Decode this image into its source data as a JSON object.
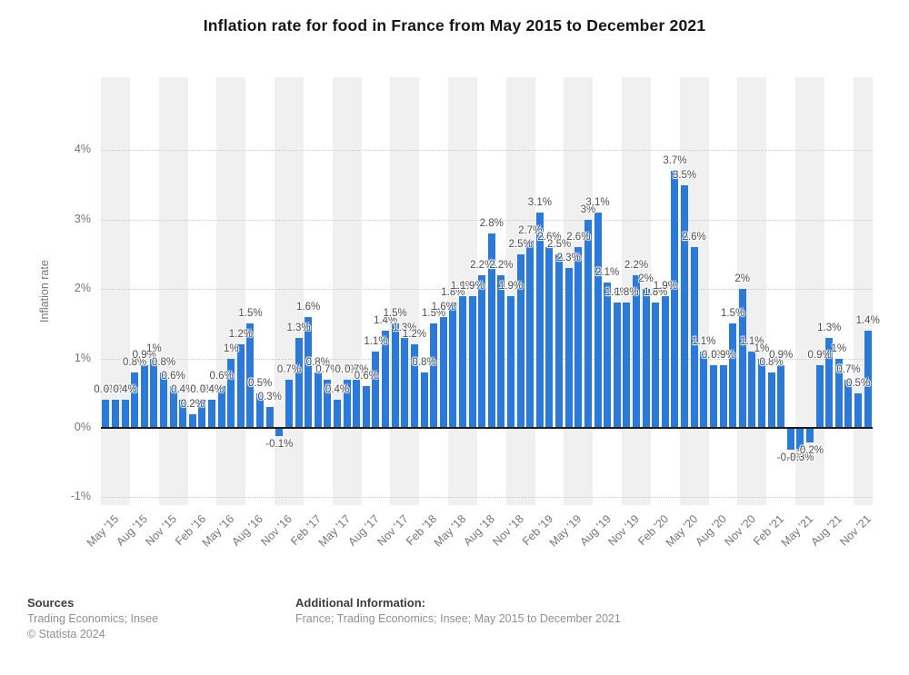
{
  "title": "Inflation rate for food in France from May 2015 to December 2021",
  "y_axis": {
    "label": "Inflation rate",
    "ticks": [
      {
        "label": "4%",
        "value": 4
      },
      {
        "label": "3%",
        "value": 3
      },
      {
        "label": "2%",
        "value": 2
      },
      {
        "label": "1%",
        "value": 1
      },
      {
        "label": "0%",
        "value": 0
      },
      {
        "label": "-1%",
        "value": -1
      }
    ]
  },
  "chart_data": {
    "type": "bar",
    "title": "Inflation rate for food in France from May 2015 to December 2021",
    "xlabel": "",
    "ylabel": "Inflation rate",
    "ylim": [
      -1,
      4
    ],
    "grid": "horizontal-dotted",
    "legend": "none",
    "bar_color": "#2b79d8",
    "band_colors": [
      "#f0f0f0",
      "#ffffff"
    ],
    "label_unit": "%",
    "x_tick_every": 3,
    "categories": [
      "May '15",
      "Jun '15",
      "Jul '15",
      "Aug '15",
      "Sep '15",
      "Oct '15",
      "Nov '15",
      "Dec '15",
      "Jan '16",
      "Feb '16",
      "Mar '16",
      "Apr '16",
      "May '16",
      "Jun '16",
      "Jul '16",
      "Aug '16",
      "Sep '16",
      "Oct '16",
      "Nov '16",
      "Dec '16",
      "Jan '17",
      "Feb '17",
      "Mar '17",
      "Apr '17",
      "May '17",
      "Jun '17",
      "Jul '17",
      "Aug '17",
      "Sep '17",
      "Oct '17",
      "Nov '17",
      "Dec '17",
      "Jan '18",
      "Feb '18",
      "Mar '18",
      "Apr '18",
      "May '18",
      "Jun '18",
      "Jul '18",
      "Aug '18",
      "Sep '18",
      "Oct '18",
      "Nov '18",
      "Dec '18",
      "Jan '19",
      "Feb '19",
      "Mar '19",
      "Apr '19",
      "May '19",
      "Jun '19",
      "Jul '19",
      "Aug '19",
      "Sep '19",
      "Oct '19",
      "Nov '19",
      "Dec '19",
      "Jan '20",
      "Feb '20",
      "Mar '20",
      "Apr '20",
      "May '20",
      "Jun '20",
      "Jul '20",
      "Aug '20",
      "Sep '20",
      "Oct '20",
      "Nov '20",
      "Dec '20",
      "Jan '21",
      "Feb '21",
      "Mar '21",
      "Apr '21",
      "May '21",
      "Jun '21",
      "Jul '21",
      "Aug '21",
      "Sep '21",
      "Oct '21",
      "Nov '21",
      "Dec '21"
    ],
    "values": [
      0.4,
      0.4,
      0.4,
      0.8,
      0.9,
      1,
      0.8,
      0.6,
      0.4,
      0.2,
      0.4,
      0.4,
      0.6,
      1,
      1.2,
      1.5,
      0.5,
      0.3,
      -0.1,
      0.7,
      1.3,
      1.6,
      0.8,
      0.7,
      0.4,
      0.7,
      0.7,
      0.6,
      1.1,
      1.4,
      1.5,
      1.3,
      1.2,
      0.8,
      1.5,
      1.6,
      1.8,
      1.9,
      1.9,
      2.2,
      2.8,
      2.2,
      1.9,
      2.5,
      2.7,
      3.1,
      2.6,
      2.5,
      2.3,
      2.6,
      3,
      3.1,
      2.1,
      1.8,
      1.8,
      2.2,
      2,
      1.8,
      1.9,
      3.7,
      3.5,
      2.6,
      1.1,
      0.9,
      0.9,
      1.5,
      2,
      1.1,
      1,
      0.8,
      0.9,
      -0.3,
      -0.3,
      -0.2,
      0.9,
      1.3,
      1,
      0.7,
      0.5,
      1.4
    ]
  },
  "footer": {
    "sources_title": "Sources",
    "sources_line1": "Trading Economics; Insee",
    "copyright": "© Statista 2024",
    "additional_title": "Additional Information:",
    "additional_line1": "France; Trading Economics; Insee; May 2015 to December 2021"
  }
}
